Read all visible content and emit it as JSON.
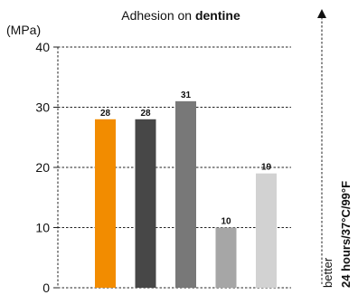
{
  "chart_data": {
    "type": "bar",
    "title_prefix": "Adhesion on ",
    "title_emphasis": "dentine",
    "ylabel": "(MPa)",
    "ylim": [
      0,
      40
    ],
    "yticks": [
      0,
      10,
      20,
      30,
      40
    ],
    "grid": true,
    "bars": [
      {
        "value": 28,
        "label": "28",
        "color": "#f28c00"
      },
      {
        "value": 28,
        "label": "28",
        "color": "#474747"
      },
      {
        "value": 31,
        "label": "31",
        "color": "#787878"
      },
      {
        "value": 10,
        "label": "10",
        "color": "#a6a6a6"
      },
      {
        "value": 19,
        "label": "19",
        "color": "#d2d2d2"
      }
    ],
    "side_note": "better",
    "condition": "24 hours/37°C/99°F"
  }
}
